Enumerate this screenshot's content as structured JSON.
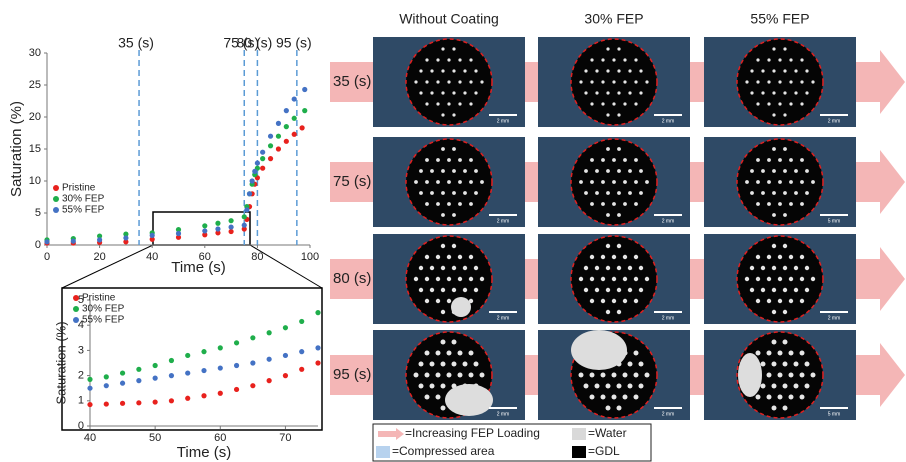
{
  "chart_data": [
    {
      "type": "scatter",
      "xlabel": "Time (s)",
      "ylabel": "Saturation (%)",
      "xlim": [
        0,
        100
      ],
      "ylim": [
        0,
        30
      ],
      "xticks": [
        0,
        20,
        40,
        60,
        80,
        100
      ],
      "yticks": [
        0,
        5,
        10,
        15,
        20,
        25,
        30
      ],
      "legend": "left",
      "vlines": [
        {
          "value": 35,
          "label": "35 (s)"
        },
        {
          "value": 75,
          "label": "75 (s)"
        },
        {
          "value": 80,
          "label": "80 (s)"
        },
        {
          "value": 95,
          "label": "95 (s)"
        }
      ],
      "series": [
        {
          "name": "Pristine",
          "color": "#e8211d",
          "x": [
            0,
            10,
            20,
            30,
            40,
            50,
            60,
            65,
            70,
            75,
            76,
            77,
            78,
            79,
            80,
            82,
            85,
            88,
            91,
            94,
            97
          ],
          "values": [
            0.3,
            0.3,
            0.4,
            0.5,
            0.9,
            1.2,
            1.6,
            1.9,
            2.1,
            2.5,
            4,
            6,
            8,
            9.5,
            10.5,
            12,
            13.5,
            15,
            16.2,
            17.3,
            18.3
          ]
        },
        {
          "name": "30% FEP",
          "color": "#1fae4b",
          "x": [
            0,
            10,
            20,
            30,
            40,
            50,
            60,
            65,
            70,
            75,
            76,
            77,
            78,
            79,
            80,
            82,
            85,
            88,
            91,
            94,
            98
          ],
          "values": [
            0.8,
            1,
            1.4,
            1.7,
            1.9,
            2.4,
            3,
            3.4,
            3.8,
            4.4,
            6,
            8,
            9.5,
            11,
            12,
            13.5,
            15.5,
            17,
            18.5,
            19.8,
            21
          ]
        },
        {
          "name": "55% FEP",
          "color": "#4472c4",
          "x": [
            0,
            10,
            20,
            30,
            40,
            50,
            60,
            65,
            70,
            75,
            76,
            77,
            78,
            79,
            80,
            82,
            85,
            88,
            91,
            94,
            98
          ],
          "values": [
            0.5,
            0.6,
            0.8,
            1.1,
            1.5,
            1.8,
            2.2,
            2.5,
            2.8,
            3.1,
            5.5,
            8,
            10,
            11.5,
            12.8,
            14.5,
            17,
            19,
            21,
            22.8,
            24.3
          ]
        }
      ]
    },
    {
      "type": "scatter",
      "xlabel": "Time (s)",
      "ylabel": "Saturation (%)",
      "xlim": [
        40,
        75
      ],
      "ylim": [
        0,
        5
      ],
      "xticks": [
        40,
        50,
        60,
        70
      ],
      "yticks": [
        0,
        1,
        2,
        3,
        4,
        5
      ],
      "legend": "upper left",
      "series": [
        {
          "name": "Pristine",
          "color": "#e8211d",
          "x": [
            40,
            42.5,
            45,
            47.5,
            50,
            52.5,
            55,
            57.5,
            60,
            62.5,
            65,
            67.5,
            70,
            72.5,
            75
          ],
          "values": [
            0.85,
            0.87,
            0.9,
            0.92,
            0.95,
            1.0,
            1.1,
            1.2,
            1.3,
            1.45,
            1.6,
            1.8,
            2.0,
            2.25,
            2.5
          ]
        },
        {
          "name": "30% FEP",
          "color": "#1fae4b",
          "x": [
            40,
            42.5,
            45,
            47.5,
            50,
            52.5,
            55,
            57.5,
            60,
            62.5,
            65,
            67.5,
            70,
            72.5,
            75
          ],
          "values": [
            1.85,
            1.95,
            2.1,
            2.25,
            2.4,
            2.6,
            2.8,
            2.95,
            3.1,
            3.3,
            3.5,
            3.7,
            3.9,
            4.15,
            4.5
          ]
        },
        {
          "name": "55% FEP",
          "color": "#4472c4",
          "x": [
            40,
            42.5,
            45,
            47.5,
            50,
            52.5,
            55,
            57.5,
            60,
            62.5,
            65,
            67.5,
            70,
            72.5,
            75
          ],
          "values": [
            1.5,
            1.6,
            1.7,
            1.8,
            1.9,
            2.0,
            2.1,
            2.2,
            2.3,
            2.4,
            2.5,
            2.65,
            2.8,
            2.95,
            3.1
          ]
        }
      ]
    }
  ],
  "image_grid": {
    "columns": [
      "Without Coating",
      "30% FEP",
      "55% FEP"
    ],
    "rows": [
      "35 (s)",
      "75 (s)",
      "80 (s)",
      "95 (s)"
    ],
    "scale_bars": [
      [
        "2 mm",
        "2 mm",
        "2 mm"
      ],
      [
        "2 mm",
        "2 mm",
        "5 mm"
      ],
      [
        "2 mm",
        "2 mm",
        "2 mm"
      ],
      [
        "2 mm",
        "2 mm",
        "5 mm"
      ]
    ]
  },
  "legend": {
    "items": [
      "=Increasing FEP Loading",
      "=Water",
      "=Compressed area",
      "=GDL"
    ]
  }
}
